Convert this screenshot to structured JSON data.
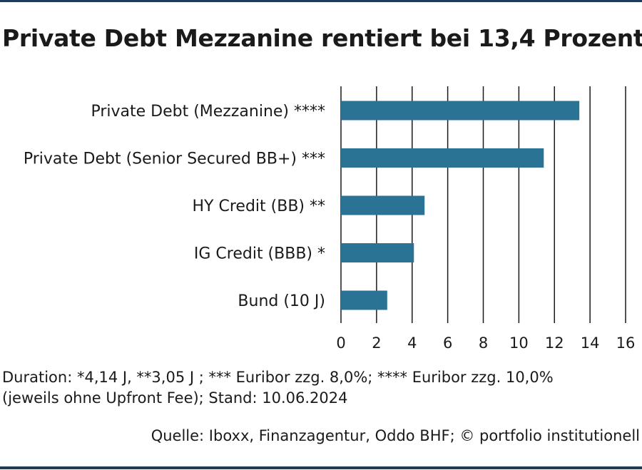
{
  "title": "Private Debt Mezzanine rentiert bei 13,4 Prozent",
  "footnote_line1": "Duration: *4,14 J, **3,05 J ; *** Euribor zzg. 8,0%; **** Euribor zzg. 10,0%",
  "footnote_line2": "(jeweils ohne Upfront Fee); Stand: 10.06.2024",
  "source": "Quelle: Iboxx, Finanzagentur, Oddo BHF; © portfolio institutionell",
  "colors": {
    "bar": "#2b7394",
    "rule": "#1f3a5c",
    "grid": "#1a1a1a"
  },
  "chart_data": {
    "type": "bar",
    "orientation": "horizontal",
    "categories": [
      "Private Debt (Mezzanine) ****",
      "Private Debt (Senior Secured BB+) ***",
      "HY Credit (BB) **",
      "IG Credit (BBB) *",
      "Bund (10 J)"
    ],
    "values": [
      13.4,
      11.4,
      4.7,
      4.1,
      2.6
    ],
    "xlim": [
      0,
      16
    ],
    "ticks": [
      0,
      2,
      4,
      6,
      8,
      10,
      12,
      14,
      16
    ],
    "grid": true,
    "title": "Private Debt Mezzanine rentiert bei 13,4 Prozent",
    "xlabel": "",
    "ylabel": ""
  }
}
